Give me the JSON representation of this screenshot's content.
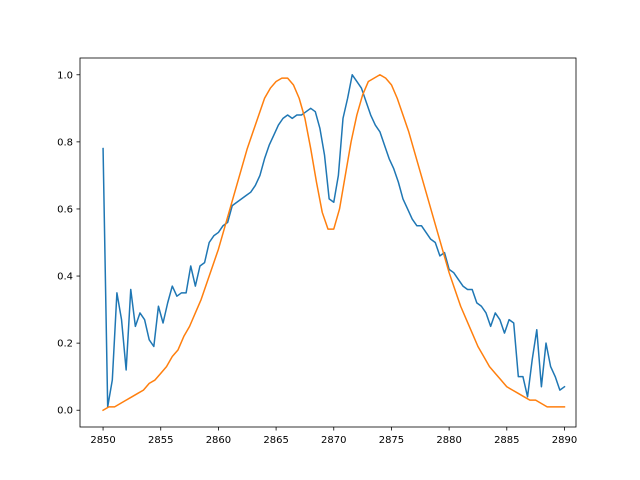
{
  "chart_data": {
    "type": "line",
    "title": "",
    "xlabel": "",
    "ylabel": "",
    "xlim": [
      2848,
      2891
    ],
    "ylim": [
      -0.05,
      1.05
    ],
    "grid": false,
    "legend": "none",
    "x_ticks": [
      2850,
      2855,
      2860,
      2865,
      2870,
      2875,
      2880,
      2885,
      2890
    ],
    "y_ticks": [
      0.0,
      0.2,
      0.4,
      0.6,
      0.8,
      1.0
    ],
    "x_tick_labels": [
      "2850",
      "2855",
      "2860",
      "2865",
      "2870",
      "2875",
      "2880",
      "2885",
      "2890"
    ],
    "y_tick_labels": [
      "0.0",
      "0.2",
      "0.4",
      "0.6",
      "0.8",
      "1.0"
    ],
    "series": [
      {
        "color": "#1f77b4",
        "x": [
          2850.0,
          2850.4,
          2850.8,
          2851.2,
          2851.6,
          2852.0,
          2852.4,
          2852.8,
          2853.2,
          2853.6,
          2854.0,
          2854.4,
          2854.8,
          2855.2,
          2855.6,
          2856.0,
          2856.4,
          2856.8,
          2857.2,
          2857.6,
          2858.0,
          2858.4,
          2858.8,
          2859.2,
          2859.6,
          2860.0,
          2860.4,
          2860.8,
          2861.2,
          2861.6,
          2862.0,
          2862.4,
          2862.8,
          2863.2,
          2863.6,
          2864.0,
          2864.4,
          2864.8,
          2865.2,
          2865.6,
          2866.0,
          2866.4,
          2866.8,
          2867.2,
          2867.6,
          2868.0,
          2868.4,
          2868.8,
          2869.2,
          2869.6,
          2870.0,
          2870.4,
          2870.8,
          2871.2,
          2871.6,
          2872.0,
          2872.4,
          2872.8,
          2873.2,
          2873.6,
          2874.0,
          2874.4,
          2874.8,
          2875.2,
          2875.6,
          2876.0,
          2876.4,
          2876.8,
          2877.2,
          2877.6,
          2878.0,
          2878.4,
          2878.8,
          2879.2,
          2879.6,
          2880.0,
          2880.4,
          2880.8,
          2881.2,
          2881.6,
          2882.0,
          2882.4,
          2882.8,
          2883.2,
          2883.6,
          2884.0,
          2884.4,
          2884.8,
          2885.2,
          2885.6,
          2886.0,
          2886.4,
          2886.8,
          2887.2,
          2887.6,
          2888.0,
          2888.4,
          2888.8,
          2889.2,
          2889.6,
          2890.0
        ],
        "y": [
          0.78,
          0.01,
          0.09,
          0.35,
          0.27,
          0.12,
          0.36,
          0.25,
          0.29,
          0.27,
          0.21,
          0.19,
          0.31,
          0.26,
          0.32,
          0.37,
          0.34,
          0.35,
          0.35,
          0.43,
          0.37,
          0.43,
          0.44,
          0.5,
          0.52,
          0.53,
          0.55,
          0.56,
          0.61,
          0.62,
          0.63,
          0.64,
          0.65,
          0.67,
          0.7,
          0.75,
          0.79,
          0.82,
          0.85,
          0.87,
          0.88,
          0.87,
          0.88,
          0.88,
          0.89,
          0.9,
          0.89,
          0.84,
          0.76,
          0.63,
          0.62,
          0.7,
          0.87,
          0.93,
          1.0,
          0.98,
          0.96,
          0.92,
          0.88,
          0.85,
          0.83,
          0.79,
          0.75,
          0.72,
          0.68,
          0.63,
          0.6,
          0.57,
          0.55,
          0.55,
          0.53,
          0.51,
          0.5,
          0.46,
          0.47,
          0.42,
          0.41,
          0.39,
          0.37,
          0.36,
          0.36,
          0.32,
          0.31,
          0.29,
          0.25,
          0.29,
          0.27,
          0.23,
          0.27,
          0.26,
          0.1,
          0.1,
          0.04,
          0.15,
          0.24,
          0.07,
          0.2,
          0.13,
          0.1,
          0.06,
          0.07
        ]
      },
      {
        "color": "#ff7f0e",
        "x": [
          2850.0,
          2850.5,
          2851.0,
          2851.5,
          2852.0,
          2852.5,
          2853.0,
          2853.5,
          2854.0,
          2854.5,
          2855.0,
          2855.5,
          2856.0,
          2856.5,
          2857.0,
          2857.5,
          2858.0,
          2858.5,
          2859.0,
          2859.5,
          2860.0,
          2860.5,
          2861.0,
          2861.5,
          2862.0,
          2862.5,
          2863.0,
          2863.5,
          2864.0,
          2864.5,
          2865.0,
          2865.5,
          2866.0,
          2866.5,
          2867.0,
          2867.5,
          2868.0,
          2868.5,
          2869.0,
          2869.5,
          2870.0,
          2870.5,
          2871.0,
          2871.5,
          2872.0,
          2872.5,
          2873.0,
          2873.5,
          2874.0,
          2874.5,
          2875.0,
          2875.5,
          2876.0,
          2876.5,
          2877.0,
          2877.5,
          2878.0,
          2878.5,
          2879.0,
          2879.5,
          2880.0,
          2880.5,
          2881.0,
          2881.5,
          2882.0,
          2882.5,
          2883.0,
          2883.5,
          2884.0,
          2884.5,
          2885.0,
          2885.5,
          2886.0,
          2886.5,
          2887.0,
          2887.5,
          2888.0,
          2888.5,
          2889.0,
          2889.5,
          2890.0
        ],
        "y": [
          0.0,
          0.01,
          0.01,
          0.02,
          0.03,
          0.04,
          0.05,
          0.06,
          0.08,
          0.09,
          0.11,
          0.13,
          0.16,
          0.18,
          0.22,
          0.25,
          0.29,
          0.33,
          0.38,
          0.43,
          0.48,
          0.54,
          0.6,
          0.66,
          0.72,
          0.78,
          0.83,
          0.88,
          0.93,
          0.96,
          0.98,
          0.99,
          0.99,
          0.97,
          0.93,
          0.87,
          0.78,
          0.68,
          0.59,
          0.54,
          0.54,
          0.6,
          0.7,
          0.8,
          0.88,
          0.94,
          0.98,
          0.99,
          1.0,
          0.99,
          0.97,
          0.93,
          0.88,
          0.83,
          0.77,
          0.71,
          0.65,
          0.59,
          0.53,
          0.47,
          0.41,
          0.36,
          0.31,
          0.27,
          0.23,
          0.19,
          0.16,
          0.13,
          0.11,
          0.09,
          0.07,
          0.06,
          0.05,
          0.04,
          0.03,
          0.03,
          0.02,
          0.01,
          0.01,
          0.01,
          0.01
        ]
      }
    ]
  }
}
